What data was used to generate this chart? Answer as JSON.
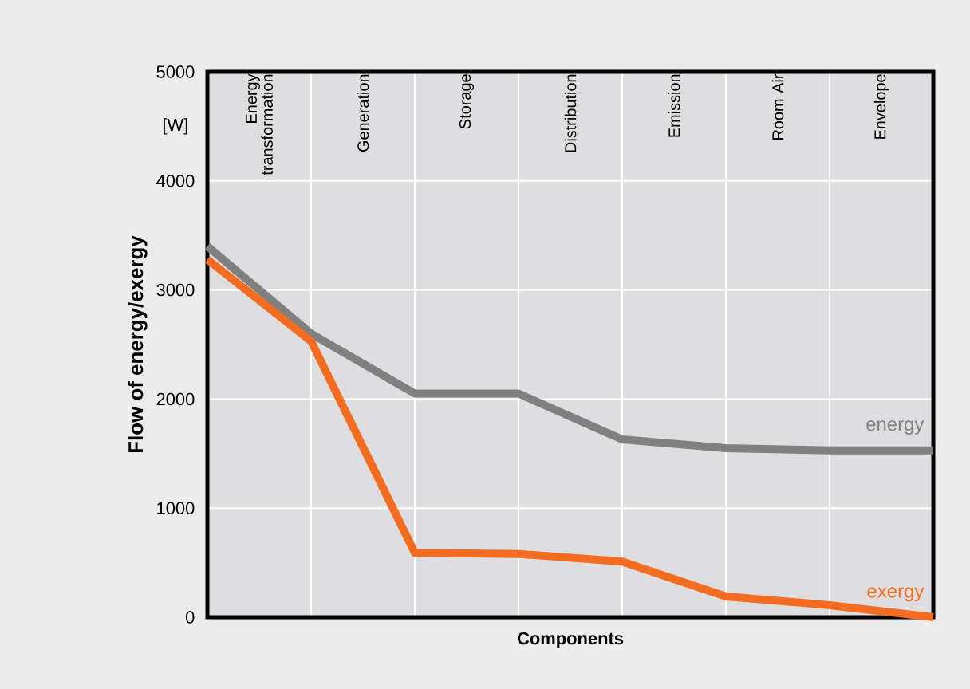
{
  "chart_data": {
    "type": "line",
    "xlabel": "Components",
    "ylabel": "Flow of energy/exergy",
    "categories": [
      null,
      null,
      null,
      null,
      null,
      null,
      null,
      null
    ],
    "series": [
      {
        "name": "energy",
        "color": "#808080",
        "values": [
          3400,
          2600,
          2050,
          2050,
          1630,
          1550,
          1530,
          1530
        ]
      },
      {
        "name": "exergy",
        "color": "#f26c22",
        "values": [
          3280,
          2530,
          590,
          580,
          510,
          190,
          110,
          0
        ]
      }
    ],
    "ylim": [
      0,
      5000
    ],
    "yticks": [
      0,
      1000,
      2000,
      3000,
      4000,
      5000
    ],
    "grid": true,
    "annotations": [
      "Energy transformation",
      "Generation",
      "Storage",
      "Distribution",
      "Emission",
      "Room Air",
      "Envelope",
      "[W]"
    ]
  }
}
